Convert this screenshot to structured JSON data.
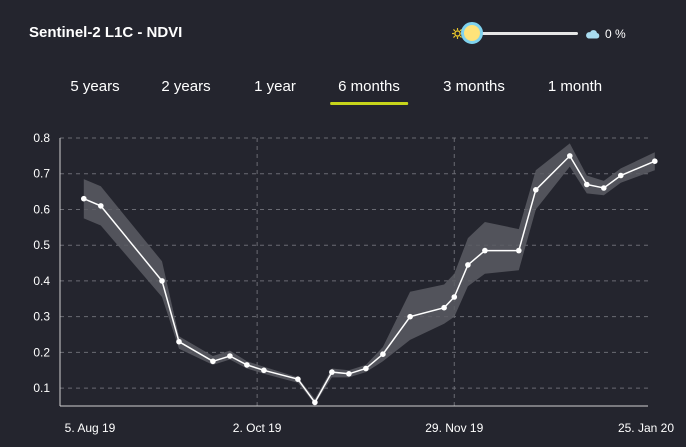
{
  "header": {
    "title": "Sentinel-2 L1C - NDVI",
    "cloud_value": "0 %",
    "sun_icon": "sun-icon",
    "cloud_icon": "cloud-icon",
    "slider_fraction": 0
  },
  "tabs": [
    {
      "label": "5 years",
      "active": false
    },
    {
      "label": "2 years",
      "active": false
    },
    {
      "label": "1 year",
      "active": false
    },
    {
      "label": "6 months",
      "active": true
    },
    {
      "label": "3 months",
      "active": false
    },
    {
      "label": "1 month",
      "active": false
    }
  ],
  "colors": {
    "background": "#24252e",
    "active_tab_underline": "#c7d51b",
    "line": "#ffffff",
    "band": "#5b5c63",
    "grid": "#6a6b73"
  },
  "chart_data": {
    "type": "line",
    "title": "",
    "xlabel": "",
    "ylabel": "",
    "x_tick_labels": [
      "5. Aug 19",
      "2. Oct 19",
      "29. Nov 19",
      "25. Jan 20"
    ],
    "x_tick_dates": [
      "2019-08-05",
      "2019-10-02",
      "2019-11-29",
      "2020-01-25"
    ],
    "xlim": [
      "2019-08-05",
      "2020-01-25"
    ],
    "ylim": [
      0.05,
      0.8
    ],
    "y_ticks": [
      0.1,
      0.2,
      0.3,
      0.4,
      0.5,
      0.6,
      0.7,
      0.8
    ],
    "grid": true,
    "series": [
      {
        "points": [
          {
            "x": "2019-08-12",
            "y": 0.63,
            "low": 0.575,
            "high": 0.685
          },
          {
            "x": "2019-08-17",
            "y": 0.61,
            "low": 0.555,
            "high": 0.665
          },
          {
            "x": "2019-09-04",
            "y": 0.4,
            "low": 0.355,
            "high": 0.455
          },
          {
            "x": "2019-09-09",
            "y": 0.23,
            "low": 0.21,
            "high": 0.245
          },
          {
            "x": "2019-09-19",
            "y": 0.175,
            "low": 0.165,
            "high": 0.19
          },
          {
            "x": "2019-09-24",
            "y": 0.19,
            "low": 0.18,
            "high": 0.205
          },
          {
            "x": "2019-09-29",
            "y": 0.165,
            "low": 0.155,
            "high": 0.175
          },
          {
            "x": "2019-10-04",
            "y": 0.15,
            "low": 0.14,
            "high": 0.16
          },
          {
            "x": "2019-10-14",
            "y": 0.125,
            "low": 0.115,
            "high": 0.13
          },
          {
            "x": "2019-10-19",
            "y": 0.06,
            "low": 0.055,
            "high": 0.07
          },
          {
            "x": "2019-10-24",
            "y": 0.145,
            "low": 0.13,
            "high": 0.155
          },
          {
            "x": "2019-10-29",
            "y": 0.14,
            "low": 0.13,
            "high": 0.15
          },
          {
            "x": "2019-11-03",
            "y": 0.155,
            "low": 0.145,
            "high": 0.165
          },
          {
            "x": "2019-11-08",
            "y": 0.195,
            "low": 0.175,
            "high": 0.215
          },
          {
            "x": "2019-11-16",
            "y": 0.3,
            "low": 0.235,
            "high": 0.37
          },
          {
            "x": "2019-11-26",
            "y": 0.325,
            "low": 0.28,
            "high": 0.39
          },
          {
            "x": "2019-11-29",
            "y": 0.355,
            "low": 0.3,
            "high": 0.42
          },
          {
            "x": "2019-12-03",
            "y": 0.445,
            "low": 0.385,
            "high": 0.52
          },
          {
            "x": "2019-12-08",
            "y": 0.485,
            "low": 0.42,
            "high": 0.565
          },
          {
            "x": "2019-12-18",
            "y": 0.485,
            "low": 0.43,
            "high": 0.545
          },
          {
            "x": "2019-12-23",
            "y": 0.655,
            "low": 0.6,
            "high": 0.71
          },
          {
            "x": "2020-01-02",
            "y": 0.75,
            "low": 0.72,
            "high": 0.785
          },
          {
            "x": "2020-01-07",
            "y": 0.67,
            "low": 0.645,
            "high": 0.695
          },
          {
            "x": "2020-01-12",
            "y": 0.66,
            "low": 0.64,
            "high": 0.68
          },
          {
            "x": "2020-01-17",
            "y": 0.695,
            "low": 0.675,
            "high": 0.715
          },
          {
            "x": "2020-01-27",
            "y": 0.735,
            "low": 0.71,
            "high": 0.76
          }
        ]
      }
    ]
  }
}
